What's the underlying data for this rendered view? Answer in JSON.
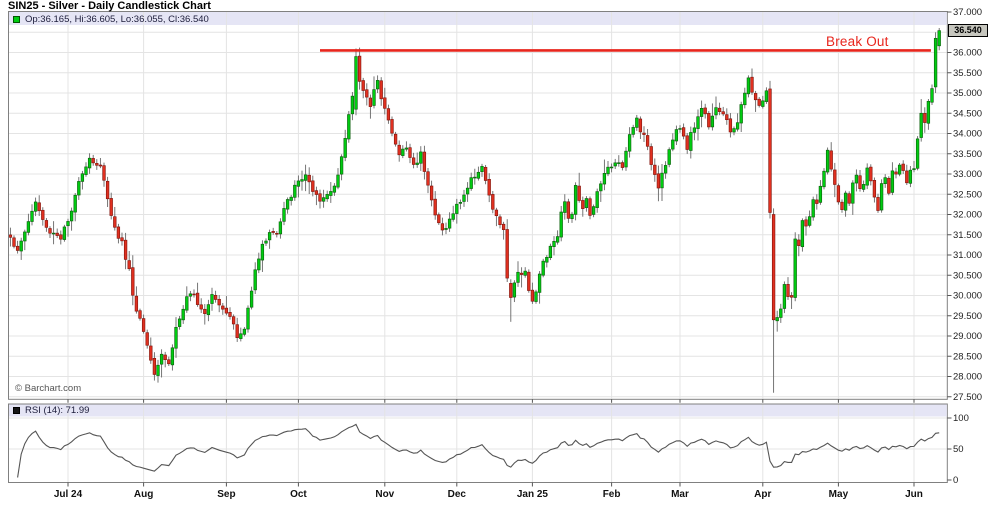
{
  "title": "SIN25 - Silver - Daily Candlestick Chart",
  "main_panel": {
    "ohlc_text": "Op:36.165, Hi:36.605, Lo:36.055, Cl:36.540",
    "copyright": "© Barchart.com"
  },
  "rsi_panel": {
    "label": "RSI (14): 71.99"
  },
  "annotation": {
    "text": "Break Out",
    "color": "#e8261d"
  },
  "price_axis": {
    "last_label": "36.540"
  },
  "chart_data": {
    "type": "candlestick",
    "title": "SIN25 - Silver - Daily Candlestick Chart",
    "symbol": "SIN25",
    "timeframe": "Daily",
    "seed": 1337,
    "days": 259,
    "y_axis": {
      "min": 27.5,
      "max": 37.0,
      "tick_step": 0.5,
      "tick_labels": [
        "37.000",
        "36.000",
        "35.500",
        "35.000",
        "34.500",
        "34.000",
        "33.500",
        "33.000",
        "32.500",
        "32.000",
        "31.500",
        "31.000",
        "30.500",
        "30.000",
        "29.500",
        "29.000",
        "28.500",
        "28.000",
        "27.500"
      ]
    },
    "rsi": {
      "period": 14,
      "value": 71.99,
      "range": [
        0,
        100
      ],
      "tick_labels": [
        "100",
        "50",
        "0"
      ]
    },
    "x_axis": {
      "months": [
        {
          "label": "Jul 24",
          "day": 16
        },
        {
          "label": "Aug",
          "day": 37
        },
        {
          "label": "Sep",
          "day": 60
        },
        {
          "label": "Oct",
          "day": 80
        },
        {
          "label": "Nov",
          "day": 104
        },
        {
          "label": "Dec",
          "day": 124
        },
        {
          "label": "Jan 25",
          "day": 145
        },
        {
          "label": "Feb",
          "day": 167
        },
        {
          "label": "Mar",
          "day": 186
        },
        {
          "label": "Apr",
          "day": 209
        },
        {
          "label": "May",
          "day": 230
        },
        {
          "label": "Jun",
          "day": 251
        }
      ]
    },
    "annotation": {
      "label": "Break Out",
      "price": 36.05,
      "from_day": 86,
      "to_day": 255.7
    },
    "last_candle": {
      "open": 36.165,
      "high": 36.605,
      "low": 36.055,
      "close": 36.54
    },
    "close_path_anchors": [
      [
        0,
        31.5
      ],
      [
        2,
        31.05
      ],
      [
        5,
        31.85
      ],
      [
        7,
        32.3
      ],
      [
        10,
        31.65
      ],
      [
        14,
        31.45
      ],
      [
        17,
        32.0
      ],
      [
        19,
        32.9
      ],
      [
        22,
        33.4
      ],
      [
        25,
        33.15
      ],
      [
        27,
        32.45
      ],
      [
        29,
        31.65
      ],
      [
        31,
        31.3
      ],
      [
        33,
        30.6
      ],
      [
        35,
        29.6
      ],
      [
        36,
        29.45
      ],
      [
        39,
        28.5
      ],
      [
        40,
        28.1
      ],
      [
        42,
        28.6
      ],
      [
        44,
        28.3
      ],
      [
        46,
        29.2
      ],
      [
        49,
        29.9
      ],
      [
        51,
        30.0
      ],
      [
        54,
        29.6
      ],
      [
        56,
        30.1
      ],
      [
        58,
        29.8
      ],
      [
        61,
        29.55
      ],
      [
        63,
        28.95
      ],
      [
        65,
        29.15
      ],
      [
        67,
        30.2
      ],
      [
        68,
        30.7
      ],
      [
        70,
        31.2
      ],
      [
        72,
        31.6
      ],
      [
        74,
        31.5
      ],
      [
        76,
        32.1
      ],
      [
        78,
        32.5
      ],
      [
        80,
        32.8
      ],
      [
        82,
        33.0
      ],
      [
        84,
        32.5
      ],
      [
        86,
        32.3
      ],
      [
        89,
        32.6
      ],
      [
        91,
        33.0
      ],
      [
        93,
        33.8
      ],
      [
        94,
        34.5
      ],
      [
        95,
        34.9
      ],
      [
        96,
        35.9
      ],
      [
        97,
        35.35
      ],
      [
        99,
        34.9
      ],
      [
        100,
        34.6
      ],
      [
        102,
        35.4
      ],
      [
        103,
        34.95
      ],
      [
        105,
        34.3
      ],
      [
        107,
        33.7
      ],
      [
        108,
        33.5
      ],
      [
        110,
        33.65
      ],
      [
        112,
        33.2
      ],
      [
        114,
        33.5
      ],
      [
        116,
        32.8
      ],
      [
        118,
        31.95
      ],
      [
        120,
        31.6
      ],
      [
        122,
        31.85
      ],
      [
        124,
        32.2
      ],
      [
        126,
        32.5
      ],
      [
        129,
        33.0
      ],
      [
        131,
        33.2
      ],
      [
        133,
        32.4
      ],
      [
        135,
        31.9
      ],
      [
        137,
        31.65
      ],
      [
        138,
        30.35
      ],
      [
        139,
        30.0
      ],
      [
        140,
        30.25
      ],
      [
        141,
        30.6
      ],
      [
        143,
        30.6
      ],
      [
        144,
        30.2
      ],
      [
        145,
        29.9
      ],
      [
        146,
        30.05
      ],
      [
        147,
        30.5
      ],
      [
        148,
        30.85
      ],
      [
        150,
        31.2
      ],
      [
        152,
        31.55
      ],
      [
        153,
        32.0
      ],
      [
        154,
        32.4
      ],
      [
        155,
        31.85
      ],
      [
        156,
        32.05
      ],
      [
        157,
        32.65
      ],
      [
        159,
        32.2
      ],
      [
        160,
        32.45
      ],
      [
        161,
        31.95
      ],
      [
        163,
        32.5
      ],
      [
        164,
        32.8
      ],
      [
        166,
        33.1
      ],
      [
        168,
        33.35
      ],
      [
        170,
        33.1
      ],
      [
        172,
        33.95
      ],
      [
        174,
        34.35
      ],
      [
        176,
        33.9
      ],
      [
        178,
        33.3
      ],
      [
        180,
        32.75
      ],
      [
        182,
        33.3
      ],
      [
        184,
        33.85
      ],
      [
        186,
        34.15
      ],
      [
        188,
        33.7
      ],
      [
        190,
        34.2
      ],
      [
        192,
        34.65
      ],
      [
        194,
        34.25
      ],
      [
        196,
        34.7
      ],
      [
        198,
        34.45
      ],
      [
        200,
        34.05
      ],
      [
        202,
        34.3
      ],
      [
        204,
        35.0
      ],
      [
        205,
        35.3
      ],
      [
        207,
        34.85
      ],
      [
        208,
        34.65
      ],
      [
        210,
        35.05
      ],
      [
        211,
        32.05
      ],
      [
        212,
        29.4
      ],
      [
        213,
        29.45
      ],
      [
        214,
        29.6
      ],
      [
        215,
        30.3
      ],
      [
        216,
        30.0
      ],
      [
        217,
        29.9
      ],
      [
        218,
        31.3
      ],
      [
        219,
        31.2
      ],
      [
        220,
        31.8
      ],
      [
        221,
        31.65
      ],
      [
        222,
        32.0
      ],
      [
        223,
        32.4
      ],
      [
        224,
        32.2
      ],
      [
        225,
        32.7
      ],
      [
        226,
        33.1
      ],
      [
        227,
        33.5
      ],
      [
        228,
        33.1
      ],
      [
        229,
        32.7
      ],
      [
        230,
        32.4
      ],
      [
        231,
        32.1
      ],
      [
        232,
        32.5
      ],
      [
        233,
        32.2
      ],
      [
        234,
        32.8
      ],
      [
        235,
        33.0
      ],
      [
        236,
        32.55
      ],
      [
        237,
        32.8
      ],
      [
        238,
        33.1
      ],
      [
        239,
        32.8
      ],
      [
        240,
        32.45
      ],
      [
        241,
        32.1
      ],
      [
        242,
        32.7
      ],
      [
        243,
        33.0
      ],
      [
        244,
        32.6
      ],
      [
        245,
        33.0
      ],
      [
        246,
        32.9
      ],
      [
        247,
        33.2
      ],
      [
        248,
        33.0
      ],
      [
        249,
        32.8
      ],
      [
        250,
        33.0
      ],
      [
        251,
        33.2
      ],
      [
        252,
        33.9
      ],
      [
        253,
        34.5
      ],
      [
        254,
        34.35
      ],
      [
        255,
        34.8
      ],
      [
        256,
        35.1
      ],
      [
        257,
        36.35
      ],
      [
        258,
        36.54
      ]
    ],
    "candle_overrides": {
      "40": {
        "o": 28.45,
        "h": 28.6,
        "l": 27.9,
        "c": 28.05
      },
      "96": {
        "o": 34.6,
        "h": 36.1,
        "l": 34.45,
        "c": 35.9
      },
      "139": {
        "o": 30.3,
        "h": 30.4,
        "l": 29.35,
        "c": 29.95
      },
      "211": {
        "o": 35.1,
        "h": 35.3,
        "l": 31.9,
        "c": 32.05
      },
      "212": {
        "o": 32.0,
        "h": 32.15,
        "l": 27.6,
        "c": 29.4
      },
      "253": {
        "o": 33.9,
        "h": 34.85,
        "l": 33.8,
        "c": 34.5
      },
      "257": {
        "o": 35.15,
        "h": 36.5,
        "l": 35.0,
        "c": 36.35
      },
      "258": {
        "o": 36.165,
        "h": 36.605,
        "l": 36.055,
        "c": 36.54
      }
    },
    "colors": {
      "up": "#00cc11",
      "up_border": "#0a5a0a",
      "down": "#e03020",
      "down_border": "#7d120b",
      "wick": "#666666",
      "grid": "#e4e4e4",
      "panel_border": "#808080",
      "label_bar": "#e5e5f5",
      "axis_text": "#222222",
      "annotation": "#e8261d",
      "rsi_line": "#555555",
      "last_tag_bg": "#c6c6be"
    }
  }
}
